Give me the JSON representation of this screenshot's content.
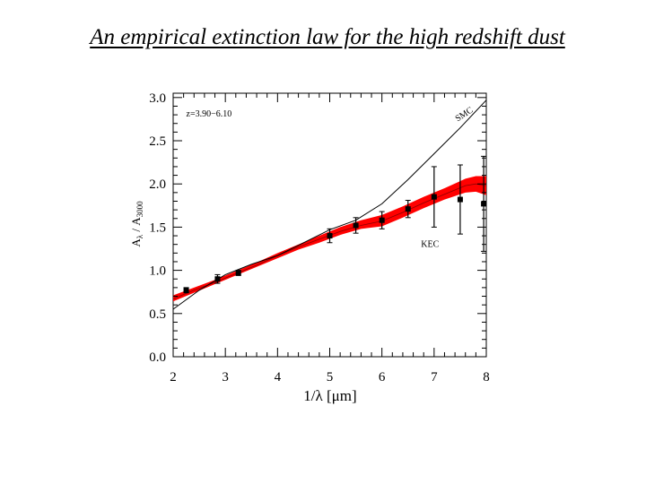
{
  "slide": {
    "title": "An empirical extinction law for the high redshift dust"
  },
  "chart_data": {
    "type": "line",
    "xlabel": "1/λ [μm]",
    "ylabel_main": "A",
    "ylabel_sub": "λ",
    "ylabel_mid": " / A",
    "ylabel_sub2": "3000",
    "xlim": [
      2,
      8
    ],
    "ylim": [
      0,
      3.05
    ],
    "xticks": [
      2,
      3,
      4,
      5,
      6,
      7,
      8
    ],
    "xtick_labels": [
      "2",
      "3",
      "4",
      "5",
      "6",
      "7",
      "8"
    ],
    "yticks": [
      0,
      0.5,
      1,
      1.5,
      2,
      2.5,
      3
    ],
    "ytick_labels": [
      "0.0",
      "0.5",
      "1.0",
      "1.5",
      "2.0",
      "2.5",
      "3.0"
    ],
    "grid": false,
    "annotations": [
      {
        "text": "z=3.90−6.10",
        "x": 2.25,
        "y": 2.78,
        "rotate": 0
      },
      {
        "text": "SMC",
        "x": 7.45,
        "y": 2.72,
        "rotate": -33
      },
      {
        "text": "KEC",
        "x": 6.75,
        "y": 1.27,
        "rotate": 0
      }
    ],
    "series": [
      {
        "name": "SMC",
        "kind": "line",
        "color": "#000000",
        "x": [
          2.0,
          2.5,
          3.0,
          3.5,
          4.0,
          4.5,
          5.0,
          5.5,
          6.0,
          6.5,
          7.0,
          7.5,
          8.0
        ],
        "y": [
          0.55,
          0.77,
          0.95,
          1.07,
          1.17,
          1.32,
          1.47,
          1.58,
          1.77,
          2.05,
          2.35,
          2.65,
          2.97
        ]
      },
      {
        "name": "KEC",
        "kind": "band",
        "color": "#ff0000",
        "x": [
          2.0,
          2.4,
          2.8,
          3.2,
          3.6,
          4.0,
          4.4,
          4.8,
          5.2,
          5.6,
          6.0,
          6.4,
          6.8,
          7.2,
          7.6,
          7.8,
          8.0
        ],
        "y": [
          0.67,
          0.77,
          0.86,
          0.96,
          1.06,
          1.17,
          1.27,
          1.36,
          1.45,
          1.52,
          1.57,
          1.67,
          1.78,
          1.88,
          1.98,
          2.0,
          1.98
        ],
        "lower": [
          0.64,
          0.74,
          0.84,
          0.94,
          1.04,
          1.14,
          1.24,
          1.32,
          1.41,
          1.48,
          1.51,
          1.61,
          1.72,
          1.82,
          1.9,
          1.91,
          1.87
        ],
        "upper": [
          0.71,
          0.8,
          0.89,
          0.99,
          1.09,
          1.2,
          1.3,
          1.4,
          1.5,
          1.58,
          1.64,
          1.74,
          1.85,
          1.95,
          2.06,
          2.09,
          2.09
        ]
      },
      {
        "name": "data",
        "kind": "errorbar",
        "color": "#000000",
        "x": [
          2.25,
          2.85,
          3.25,
          5.0,
          5.5,
          6.0,
          6.5,
          7.0,
          7.5,
          7.95
        ],
        "y": [
          0.77,
          0.9,
          0.97,
          1.4,
          1.52,
          1.58,
          1.71,
          1.85,
          1.82,
          1.77
        ],
        "err": [
          0.03,
          0.05,
          0.03,
          0.08,
          0.09,
          0.1,
          0.1,
          0.35,
          0.4,
          0.55
        ]
      }
    ]
  }
}
